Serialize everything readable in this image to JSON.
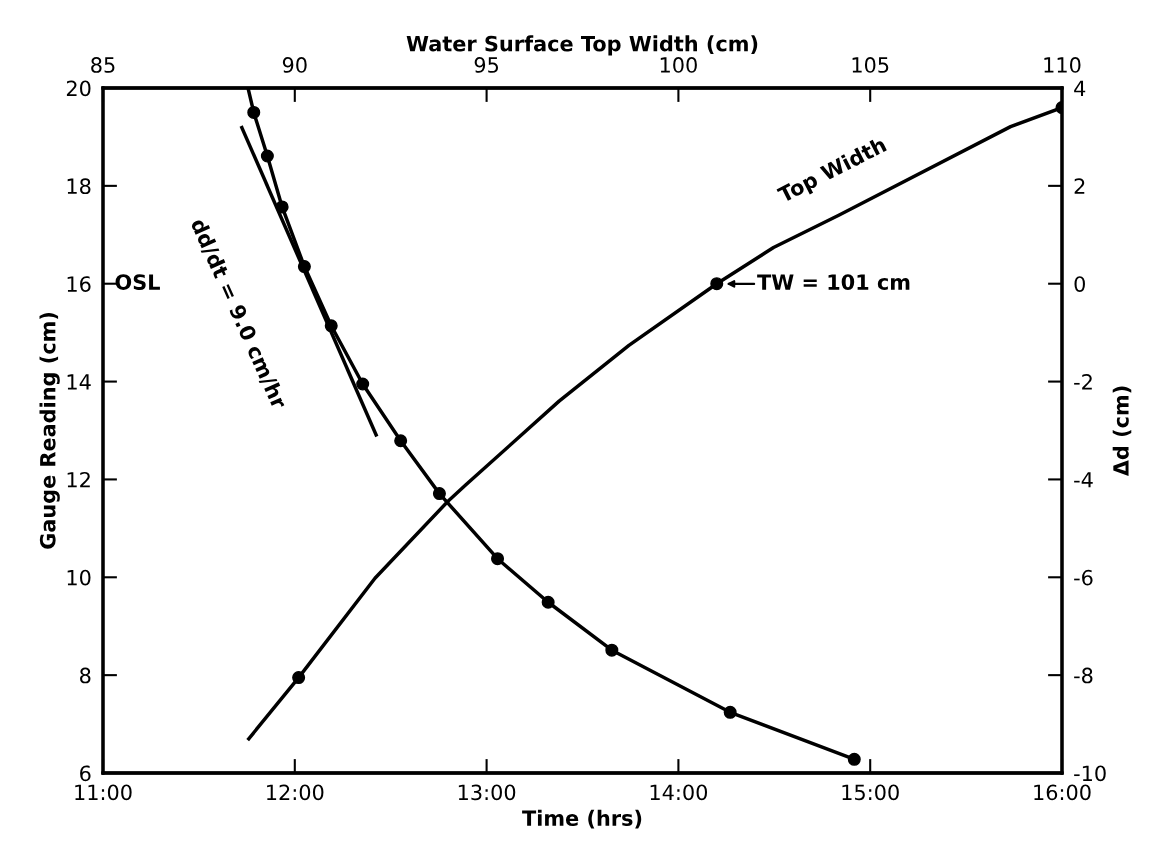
{
  "chart_data": {
    "type": "line",
    "xlabel": "Time (hrs)",
    "ylabel": "Gauge Reading (cm)",
    "y2label": "Δd (cm)",
    "x2label": "Water Surface Top Width (cm)",
    "xlim": [
      11,
      16
    ],
    "xticks": [
      {
        "value": 11,
        "label": "11:00"
      },
      {
        "value": 12,
        "label": "12:00"
      },
      {
        "value": 13,
        "label": "13:00"
      },
      {
        "value": 14,
        "label": "14:00"
      },
      {
        "value": 15,
        "label": "15:00"
      },
      {
        "value": 16,
        "label": "16:00"
      }
    ],
    "ylim": [
      6,
      20
    ],
    "yticks": [
      6,
      8,
      10,
      12,
      14,
      16,
      18,
      20
    ],
    "y2lim": [
      -10,
      4
    ],
    "y2ticks": [
      -10,
      -8,
      -6,
      -4,
      -2,
      0,
      2,
      4
    ],
    "x2lim": [
      85,
      110
    ],
    "x2ticks": [
      85,
      90,
      95,
      100,
      105,
      110
    ],
    "grid": false,
    "legend": false,
    "series": [
      {
        "color": "#000000",
        "x": [
          11.756,
          11.786,
          11.857,
          11.934,
          12.05,
          12.19,
          12.354,
          12.552,
          12.754,
          13.057,
          13.321,
          13.653,
          14.27,
          14.917
        ],
        "values": [
          20,
          19.5,
          18.61,
          17.57,
          16.35,
          15.14,
          13.95,
          12.79,
          11.71,
          10.38,
          9.49,
          8.51,
          7.24,
          6.28
        ]
      },
      {
        "type": "scatter",
        "color": "#000000",
        "marker": "circle",
        "x": [
          11.786,
          11.857,
          11.934,
          12.05,
          12.19,
          12.354,
          12.552,
          12.754,
          13.057,
          13.321,
          13.653,
          14.27,
          14.917
        ],
        "values": [
          19.5,
          18.61,
          17.57,
          16.35,
          15.14,
          13.95,
          12.79,
          11.71,
          10.38,
          9.49,
          8.51,
          7.24,
          6.28
        ]
      },
      {
        "color": "#000000",
        "x": [
          11.724,
          12.424
        ],
        "values": [
          19.19,
          12.91
        ]
      },
      {
        "name": "Top Width",
        "axis": "x2",
        "color": "#000000",
        "x": [
          88.8,
          90.1,
          92.09,
          94.0,
          94.46,
          96.89,
          98.71,
          101,
          102.48,
          104.18,
          108.66,
          110
        ],
        "values": [
          6.7,
          7.95,
          9.98,
          11.56,
          11.89,
          13.6,
          14.74,
          16,
          16.74,
          17.4,
          19.21,
          19.6
        ]
      },
      {
        "type": "scatter",
        "axis": "x2",
        "color": "#000000",
        "marker": "circle",
        "x": [
          90.1,
          101,
          110
        ],
        "values": [
          7.95,
          16,
          19.6
        ]
      }
    ],
    "annotations": [
      "OSL",
      "dd/dt = 9.0 cm/hr",
      "TW = 101 cm"
    ]
  }
}
